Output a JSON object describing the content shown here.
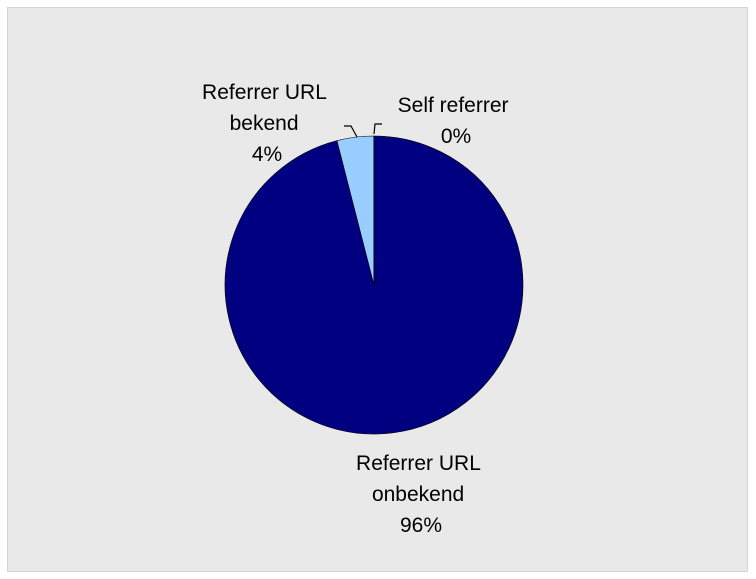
{
  "chart_data": {
    "type": "pie",
    "slices": [
      {
        "label": "Referrer URL onbekend",
        "label_lines": [
          "Referrer URL",
          "onbekend"
        ],
        "value": 96,
        "display_value": "96%",
        "color": "#000080"
      },
      {
        "label": "Referrer URL bekend",
        "label_lines": [
          "Referrer URL",
          "bekend"
        ],
        "value": 4,
        "display_value": "4%",
        "color": "#99ccff"
      },
      {
        "label": "Self referrer",
        "label_lines": [
          "Self referrer"
        ],
        "value": 0,
        "display_value": "0%",
        "color": "#e9e9e9"
      }
    ],
    "start_angle": "12 o'clock",
    "direction": "clockwise",
    "legend": "none",
    "background_color": "#e9e9e9"
  }
}
